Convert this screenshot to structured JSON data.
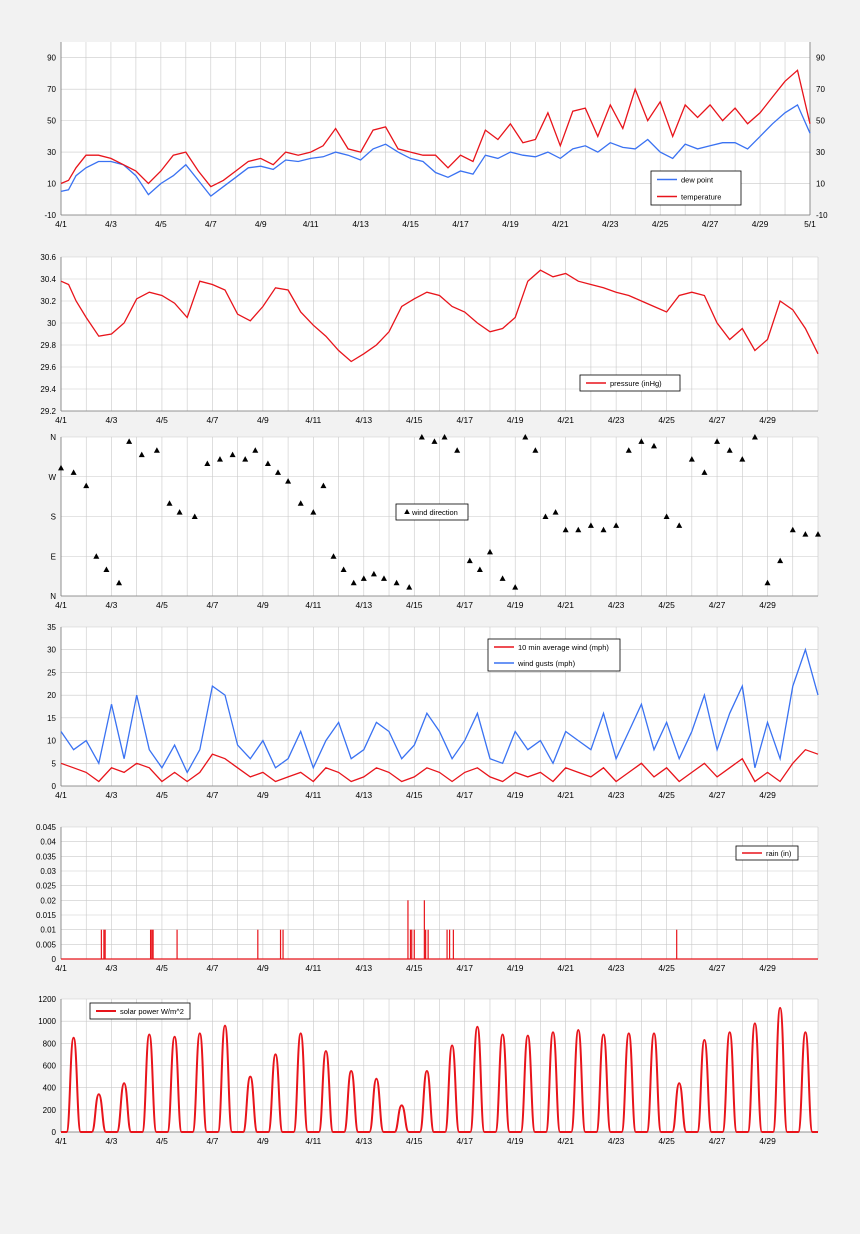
{
  "colors": {
    "red": "#e8141b",
    "blue": "#3a72f2",
    "black": "#000000",
    "grid": "#c9c9c9",
    "plot_bg": "#ffffff"
  },
  "chart_data": [
    {
      "id": "temp",
      "type": "line",
      "x_range_days": [
        0,
        30
      ],
      "x_tick_labels": [
        "4/1",
        "4/3",
        "4/5",
        "4/7",
        "4/9",
        "4/11",
        "4/13",
        "4/15",
        "4/17",
        "4/19",
        "4/21",
        "4/23",
        "4/25",
        "4/27",
        "4/29",
        "5/1"
      ],
      "ylim": [
        -10,
        100
      ],
      "y_ticks": [
        -10,
        10,
        30,
        50,
        70,
        90
      ],
      "right_axis": true,
      "grid": true,
      "legend_position": "bottom-right",
      "series": [
        {
          "name": "dew point",
          "color": "#3a72f2",
          "x": [
            0,
            0.3,
            0.6,
            1,
            1.5,
            2,
            2.5,
            3,
            3.5,
            4,
            4.5,
            5,
            5.5,
            6,
            6.5,
            7,
            7.5,
            8,
            8.5,
            9,
            9.5,
            10,
            10.5,
            11,
            11.5,
            12,
            12.5,
            13,
            13.5,
            14,
            14.5,
            15,
            15.5,
            16,
            16.5,
            17,
            17.5,
            18,
            18.5,
            19,
            19.5,
            20,
            20.5,
            21,
            21.5,
            22,
            22.5,
            23,
            23.5,
            24,
            24.5,
            25,
            25.5,
            26,
            26.5,
            27,
            27.5,
            28,
            28.5,
            29,
            29.5,
            30
          ],
          "y": [
            5,
            6,
            15,
            20,
            24,
            24,
            22,
            15,
            3,
            10,
            15,
            22,
            12,
            2,
            8,
            14,
            20,
            21,
            19,
            25,
            24,
            26,
            27,
            30,
            28,
            25,
            32,
            35,
            30,
            26,
            24,
            17,
            14,
            18,
            16,
            28,
            26,
            30,
            28,
            27,
            30,
            26,
            32,
            34,
            30,
            36,
            33,
            32,
            38,
            30,
            26,
            35,
            32,
            34,
            36,
            36,
            32,
            40,
            48,
            55,
            60,
            42
          ]
        },
        {
          "name": "temperature",
          "color": "#e8141b",
          "x": [
            0,
            0.3,
            0.6,
            1,
            1.5,
            2,
            2.5,
            3,
            3.5,
            4,
            4.5,
            5,
            5.5,
            6,
            6.5,
            7,
            7.5,
            8,
            8.5,
            9,
            9.5,
            10,
            10.5,
            11,
            11.5,
            12,
            12.5,
            13,
            13.5,
            14,
            14.5,
            15,
            15.5,
            16,
            16.5,
            17,
            17.5,
            18,
            18.5,
            19,
            19.5,
            20,
            20.5,
            21,
            21.5,
            22,
            22.5,
            23,
            23.5,
            24,
            24.5,
            25,
            25.5,
            26,
            26.5,
            27,
            27.5,
            28,
            28.5,
            29,
            29.5,
            30
          ],
          "y": [
            10,
            12,
            20,
            28,
            28,
            26,
            22,
            18,
            10,
            18,
            28,
            30,
            18,
            8,
            12,
            18,
            24,
            26,
            22,
            30,
            28,
            30,
            34,
            45,
            32,
            30,
            44,
            46,
            32,
            30,
            28,
            28,
            20,
            28,
            24,
            44,
            38,
            48,
            36,
            38,
            55,
            34,
            56,
            58,
            40,
            60,
            45,
            70,
            50,
            62,
            40,
            60,
            52,
            60,
            50,
            58,
            48,
            55,
            65,
            75,
            82,
            48
          ]
        }
      ]
    },
    {
      "id": "pressure",
      "type": "line",
      "x_range_days": [
        0,
        30
      ],
      "x_tick_labels": [
        "4/1",
        "4/3",
        "4/5",
        "4/7",
        "4/9",
        "4/11",
        "4/13",
        "4/15",
        "4/17",
        "4/19",
        "4/21",
        "4/23",
        "4/25",
        "4/27",
        "4/29"
      ],
      "ylim": [
        29.2,
        30.6
      ],
      "y_ticks": [
        "29.2",
        "29.4",
        "29.6",
        "29.8",
        "30",
        "30.2",
        "30.4",
        "30.6"
      ],
      "grid": true,
      "legend_position": "bottom-right",
      "series": [
        {
          "name": "pressure (inHg)",
          "color": "#e8141b",
          "x": [
            0,
            0.3,
            0.6,
            1,
            1.5,
            2,
            2.5,
            3,
            3.5,
            4,
            4.5,
            5,
            5.5,
            6,
            6.5,
            7,
            7.5,
            8,
            8.5,
            9,
            9.5,
            10,
            10.5,
            11,
            11.5,
            12,
            12.5,
            13,
            13.5,
            14,
            14.5,
            15,
            15.5,
            16,
            16.5,
            17,
            17.5,
            18,
            18.5,
            19,
            19.5,
            20,
            20.5,
            21,
            21.5,
            22,
            22.5,
            23,
            23.5,
            24,
            24.5,
            25,
            25.5,
            26,
            26.5,
            27,
            27.5,
            28,
            28.5,
            29,
            29.5,
            30
          ],
          "y": [
            30.38,
            30.35,
            30.2,
            30.05,
            29.88,
            29.9,
            30.0,
            30.22,
            30.28,
            30.25,
            30.18,
            30.05,
            30.38,
            30.35,
            30.3,
            30.08,
            30.02,
            30.15,
            30.32,
            30.3,
            30.1,
            29.98,
            29.88,
            29.75,
            29.65,
            29.72,
            29.8,
            29.92,
            30.15,
            30.22,
            30.28,
            30.25,
            30.15,
            30.1,
            30.0,
            29.92,
            29.95,
            30.05,
            30.38,
            30.48,
            30.42,
            30.45,
            30.38,
            30.35,
            30.32,
            30.28,
            30.25,
            30.2,
            30.15,
            30.1,
            30.25,
            30.28,
            30.25,
            30.0,
            29.85,
            29.95,
            29.75,
            29.85,
            30.2,
            30.12,
            29.95,
            29.72
          ]
        }
      ]
    },
    {
      "id": "wind_direction",
      "type": "scatter",
      "x_range_days": [
        0,
        30
      ],
      "x_tick_labels": [
        "4/1",
        "4/3",
        "4/5",
        "4/7",
        "4/9",
        "4/11",
        "4/13",
        "4/15",
        "4/17",
        "4/19",
        "4/21",
        "4/23",
        "4/25",
        "4/27",
        "4/29"
      ],
      "ylim": [
        0,
        360
      ],
      "y_ticks": [
        0,
        90,
        180,
        270,
        360
      ],
      "y_tick_labels": [
        "N",
        "E",
        "S",
        "W",
        "N"
      ],
      "grid": true,
      "legend_position": "center",
      "series": [
        {
          "name": "wind direction",
          "color": "#000000",
          "marker": "triangle",
          "x": [
            0,
            0.5,
            1,
            1.4,
            1.8,
            2.3,
            2.7,
            3.2,
            3.8,
            4.3,
            4.7,
            5.3,
            5.8,
            6.3,
            6.8,
            7.3,
            7.7,
            8.2,
            8.6,
            9.0,
            9.5,
            10.0,
            10.4,
            10.8,
            11.2,
            11.6,
            12.0,
            12.4,
            12.8,
            13.3,
            13.8,
            14.3,
            14.8,
            15.2,
            15.7,
            16.2,
            16.6,
            17.0,
            17.5,
            18.0,
            18.4,
            18.8,
            19.2,
            19.6,
            20.0,
            20.5,
            21.0,
            21.5,
            22.0,
            22.5,
            23.0,
            23.5,
            24.0,
            24.5,
            25.0,
            25.5,
            26.0,
            26.5,
            27.0,
            27.5,
            28.0,
            28.5,
            29.0,
            29.5,
            30.0
          ],
          "y": [
            290,
            280,
            250,
            90,
            60,
            30,
            350,
            320,
            330,
            210,
            190,
            180,
            300,
            310,
            320,
            310,
            330,
            300,
            280,
            260,
            210,
            190,
            250,
            90,
            60,
            30,
            40,
            50,
            40,
            30,
            20,
            360,
            350,
            360,
            330,
            80,
            60,
            100,
            40,
            20,
            360,
            330,
            180,
            190,
            150,
            150,
            160,
            150,
            160,
            330,
            350,
            340,
            180,
            160,
            310,
            280,
            350,
            330,
            310,
            360,
            30,
            80,
            150,
            140,
            140
          ]
        }
      ]
    },
    {
      "id": "wind",
      "type": "line",
      "x_range_days": [
        0,
        30
      ],
      "x_tick_labels": [
        "4/1",
        "4/3",
        "4/5",
        "4/7",
        "4/9",
        "4/11",
        "4/13",
        "4/15",
        "4/17",
        "4/19",
        "4/21",
        "4/23",
        "4/25",
        "4/27",
        "4/29"
      ],
      "ylim": [
        0,
        35
      ],
      "y_ticks": [
        0,
        5,
        10,
        15,
        20,
        25,
        30,
        35
      ],
      "grid": true,
      "legend_position": "top-right",
      "series": [
        {
          "name": "10 min average wind (mph)",
          "color": "#e8141b",
          "x": [
            0,
            0.5,
            1,
            1.5,
            2,
            2.5,
            3,
            3.5,
            4,
            4.5,
            5,
            5.5,
            6,
            6.5,
            7,
            7.5,
            8,
            8.5,
            9,
            9.5,
            10,
            10.5,
            11,
            11.5,
            12,
            12.5,
            13,
            13.5,
            14,
            14.5,
            15,
            15.5,
            16,
            16.5,
            17,
            17.5,
            18,
            18.5,
            19,
            19.5,
            20,
            20.5,
            21,
            21.5,
            22,
            22.5,
            23,
            23.5,
            24,
            24.5,
            25,
            25.5,
            26,
            26.5,
            27,
            27.5,
            28,
            28.5,
            29,
            29.5,
            30
          ],
          "y": [
            5,
            4,
            3,
            1,
            4,
            3,
            5,
            4,
            1,
            3,
            1,
            3,
            7,
            6,
            4,
            2,
            3,
            1,
            2,
            3,
            1,
            4,
            3,
            1,
            2,
            4,
            3,
            1,
            2,
            4,
            3,
            1,
            3,
            4,
            2,
            1,
            3,
            2,
            3,
            1,
            4,
            3,
            2,
            4,
            1,
            3,
            5,
            2,
            4,
            1,
            3,
            5,
            2,
            4,
            6,
            1,
            3,
            1,
            5,
            8,
            7
          ]
        },
        {
          "name": "wind gusts (mph)",
          "color": "#3a72f2",
          "x": [
            0,
            0.5,
            1,
            1.5,
            2,
            2.5,
            3,
            3.5,
            4,
            4.5,
            5,
            5.5,
            6,
            6.5,
            7,
            7.5,
            8,
            8.5,
            9,
            9.5,
            10,
            10.5,
            11,
            11.5,
            12,
            12.5,
            13,
            13.5,
            14,
            14.5,
            15,
            15.5,
            16,
            16.5,
            17,
            17.5,
            18,
            18.5,
            19,
            19.5,
            20,
            20.5,
            21,
            21.5,
            22,
            22.5,
            23,
            23.5,
            24,
            24.5,
            25,
            25.5,
            26,
            26.5,
            27,
            27.5,
            28,
            28.5,
            29,
            29.5,
            30
          ],
          "y": [
            12,
            8,
            10,
            5,
            18,
            6,
            20,
            8,
            4,
            9,
            3,
            8,
            22,
            20,
            9,
            6,
            10,
            4,
            6,
            12,
            4,
            10,
            14,
            6,
            8,
            14,
            12,
            6,
            9,
            16,
            12,
            6,
            10,
            16,
            6,
            5,
            12,
            8,
            10,
            5,
            12,
            10,
            8,
            16,
            6,
            12,
            18,
            8,
            14,
            6,
            12,
            20,
            8,
            16,
            22,
            4,
            14,
            6,
            22,
            30,
            20
          ]
        }
      ]
    },
    {
      "id": "rain",
      "type": "bar",
      "x_range_days": [
        0,
        30
      ],
      "x_tick_labels": [
        "4/1",
        "4/3",
        "4/5",
        "4/7",
        "4/9",
        "4/11",
        "4/13",
        "4/15",
        "4/17",
        "4/19",
        "4/21",
        "4/23",
        "4/25",
        "4/27",
        "4/29"
      ],
      "ylim": [
        0,
        0.045
      ],
      "y_ticks": [
        "0",
        "0.005",
        "0.01",
        "0.015",
        "0.02",
        "0.025",
        "0.03",
        "0.035",
        "0.04",
        "0.045"
      ],
      "grid": true,
      "legend_position": "top-right",
      "series": [
        {
          "name": "rain (in)",
          "color": "#e8141b",
          "x": [
            1.6,
            1.7,
            1.75,
            3.55,
            3.6,
            3.65,
            4.6,
            7.8,
            8.7,
            8.8,
            13.75,
            13.85,
            13.9,
            14.0,
            14.4,
            14.45,
            14.55,
            15.3,
            15.4,
            15.55,
            24.4
          ],
          "y": [
            0.01,
            0.01,
            0.01,
            0.01,
            0.01,
            0.01,
            0.01,
            0.01,
            0.01,
            0.01,
            0.02,
            0.01,
            0.01,
            0.01,
            0.02,
            0.01,
            0.01,
            0.01,
            0.01,
            0.01,
            0.01
          ]
        }
      ]
    },
    {
      "id": "solar",
      "type": "area",
      "x_range_days": [
        0,
        30
      ],
      "x_tick_labels": [
        "4/1",
        "4/3",
        "4/5",
        "4/7",
        "4/9",
        "4/11",
        "4/13",
        "4/15",
        "4/17",
        "4/19",
        "4/21",
        "4/23",
        "4/25",
        "4/27",
        "4/29"
      ],
      "ylim": [
        0,
        1200
      ],
      "y_ticks": [
        0,
        200,
        400,
        600,
        800,
        1000,
        1200
      ],
      "grid": true,
      "legend_position": "top-left",
      "series": [
        {
          "name": "solar power W/m^2",
          "color": "#e8141b",
          "days": [
            0.5,
            1.5,
            2.5,
            3.5,
            4.5,
            5.5,
            6.5,
            7.5,
            8.5,
            9.5,
            10.5,
            11.5,
            12.5,
            13.5,
            14.5,
            15.5,
            16.5,
            17.5,
            18.5,
            19.5,
            20.5,
            21.5,
            22.5,
            23.5,
            24.5,
            25.5,
            26.5,
            27.5,
            28.5,
            29.5
          ],
          "peak": [
            850,
            340,
            440,
            880,
            860,
            890,
            960,
            500,
            700,
            890,
            730,
            550,
            480,
            240,
            550,
            780,
            950,
            880,
            870,
            900,
            920,
            880,
            890,
            890,
            440,
            830,
            900,
            980,
            1120,
            900
          ]
        }
      ]
    }
  ]
}
